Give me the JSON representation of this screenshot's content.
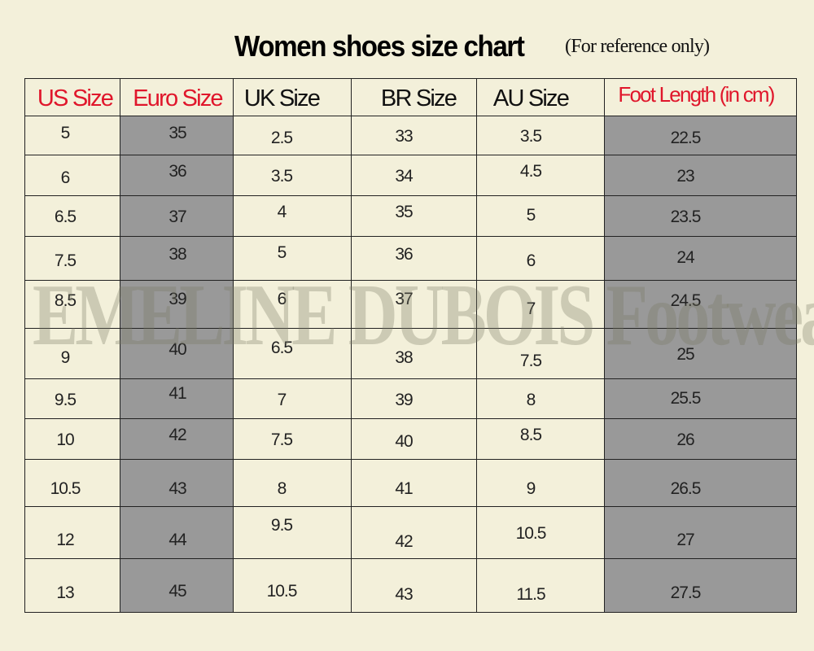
{
  "title": "Women shoes size chart",
  "subtitle": "(For reference only)",
  "watermark": "EMELINE DUBOIS Footwear Store",
  "colors": {
    "background": "#f3f0da",
    "shaded_column": "#999999",
    "accent_header": "#e0162b",
    "header": "#111111"
  },
  "columns": [
    {
      "label": "US Size",
      "accent": true,
      "shaded": false
    },
    {
      "label": "Euro Size",
      "accent": true,
      "shaded": true
    },
    {
      "label": "UK Size",
      "accent": false,
      "shaded": false
    },
    {
      "label": "BR Size",
      "accent": false,
      "shaded": false
    },
    {
      "label": "AU Size",
      "accent": false,
      "shaded": false
    },
    {
      "label": "Foot Length (in cm)",
      "accent": true,
      "shaded": true
    }
  ],
  "rows": [
    [
      "5",
      "35",
      "2.5",
      "33",
      "3.5",
      "22.5"
    ],
    [
      "6",
      "36",
      "3.5",
      "34",
      "4.5",
      "23"
    ],
    [
      "6.5",
      "37",
      "4",
      "35",
      "5",
      "23.5"
    ],
    [
      "7.5",
      "38",
      "5",
      "36",
      "6",
      "24"
    ],
    [
      "8.5",
      "39",
      "6",
      "37",
      "7",
      "24.5"
    ],
    [
      "9",
      "40",
      "6.5",
      "38",
      "7.5",
      "25"
    ],
    [
      "9.5",
      "41",
      "7",
      "39",
      "8",
      "25.5"
    ],
    [
      "10",
      "42",
      "7.5",
      "40",
      "8.5",
      "26"
    ],
    [
      "10.5",
      "43",
      "8",
      "41",
      "9",
      "26.5"
    ],
    [
      "12",
      "44",
      "9.5",
      "42",
      "10.5",
      "27"
    ],
    [
      "13",
      "45",
      "10.5",
      "43",
      "11.5",
      "27.5"
    ]
  ]
}
